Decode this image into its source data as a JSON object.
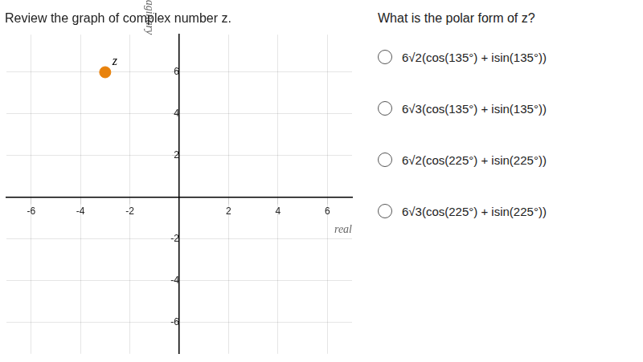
{
  "chart_data": {
    "type": "scatter",
    "title": "Review the graph of complex number z.",
    "x": [
      -3
    ],
    "values": [
      6
    ],
    "color": "#E8820C",
    "annotations": [
      {
        "text": "z",
        "x": -3,
        "y": 6
      }
    ],
    "xlabel": "real",
    "ylabel": "imaginary",
    "xlim": [
      -7,
      7
    ],
    "ylim": [
      -7.5,
      7.8
    ],
    "xticks": [
      -6,
      -4,
      -2,
      2,
      4,
      6
    ],
    "yticks": [
      -6,
      -4,
      -2,
      2,
      4,
      6
    ],
    "grid": true,
    "question": "What is the polar form of z?",
    "choices": [
      "6√2(cos(135°) + isin(135°))",
      "6√3(cos(135°) + isin(135°))",
      "6√2(cos(225°) + isin(225°))",
      "6√3(cos(225°) + isin(225°))"
    ]
  }
}
